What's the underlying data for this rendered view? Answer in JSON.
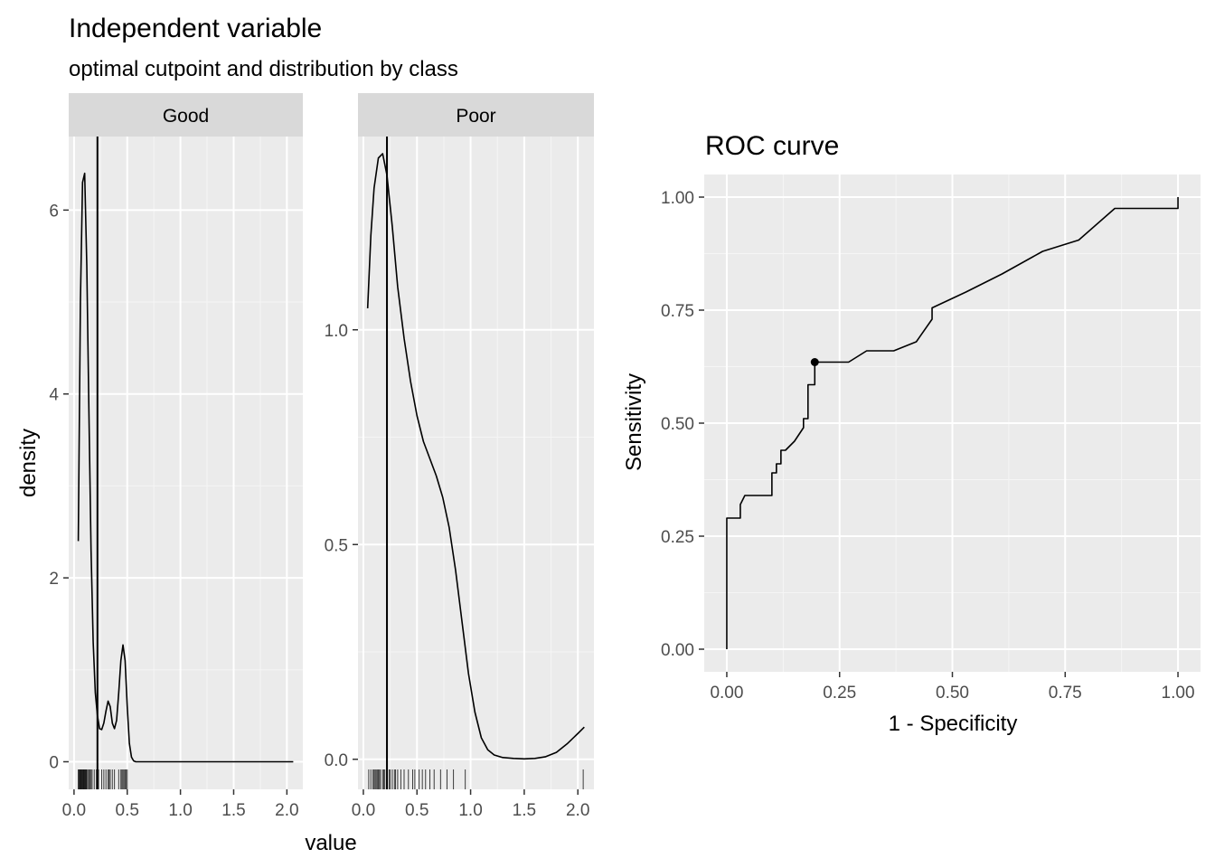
{
  "title": "Independent variable",
  "subtitle": "optimal cutpoint and distribution by class",
  "chart_data": [
    {
      "type": "line",
      "kind": "density",
      "facet": "Good",
      "xlabel": "value",
      "ylabel": "density",
      "xlim": [
        -0.05,
        2.15
      ],
      "ylim": [
        -0.3,
        6.8
      ],
      "xticks": [
        0.0,
        0.5,
        1.0,
        1.5,
        2.0
      ],
      "xtick_labels": [
        "0.0",
        "0.5",
        "1.0",
        "1.5",
        "2.0"
      ],
      "yticks": [
        0,
        2,
        4,
        6
      ],
      "ytick_labels": [
        "0",
        "2",
        "4",
        "6"
      ],
      "cutpoint": 0.22,
      "x": [
        0.04,
        0.06,
        0.08,
        0.1,
        0.12,
        0.14,
        0.16,
        0.18,
        0.2,
        0.22,
        0.24,
        0.26,
        0.28,
        0.3,
        0.32,
        0.34,
        0.36,
        0.38,
        0.4,
        0.42,
        0.44,
        0.46,
        0.48,
        0.5,
        0.52,
        0.54,
        0.56,
        0.58,
        0.6,
        0.7,
        1.0,
        1.5,
        2.06
      ],
      "y": [
        2.4,
        5.0,
        6.3,
        6.4,
        5.4,
        3.8,
        2.3,
        1.3,
        0.75,
        0.5,
        0.36,
        0.35,
        0.42,
        0.55,
        0.66,
        0.6,
        0.42,
        0.36,
        0.45,
        0.75,
        1.1,
        1.27,
        1.1,
        0.6,
        0.2,
        0.05,
        0.01,
        0.0,
        0.0,
        0.0,
        0.0,
        0.0,
        0.0
      ],
      "rug": [
        0.04,
        0.045,
        0.05,
        0.055,
        0.06,
        0.065,
        0.07,
        0.075,
        0.08,
        0.085,
        0.09,
        0.095,
        0.1,
        0.105,
        0.11,
        0.115,
        0.12,
        0.13,
        0.14,
        0.15,
        0.16,
        0.17,
        0.19,
        0.21,
        0.23,
        0.26,
        0.28,
        0.3,
        0.32,
        0.33,
        0.34,
        0.36,
        0.38,
        0.42,
        0.44,
        0.45,
        0.46,
        0.47,
        0.48,
        0.49,
        0.5
      ]
    },
    {
      "type": "line",
      "kind": "density",
      "facet": "Poor",
      "xlabel": "value",
      "xlim": [
        -0.05,
        2.15
      ],
      "ylim": [
        -0.07,
        1.45
      ],
      "xticks": [
        0.0,
        0.5,
        1.0,
        1.5,
        2.0
      ],
      "xtick_labels": [
        "0.0",
        "0.5",
        "1.0",
        "1.5",
        "2.0"
      ],
      "yticks": [
        0.0,
        0.5,
        1.0
      ],
      "ytick_labels": [
        "0.0",
        "0.5",
        "1.0"
      ],
      "cutpoint": 0.22,
      "x": [
        0.04,
        0.07,
        0.1,
        0.14,
        0.18,
        0.22,
        0.27,
        0.32,
        0.38,
        0.44,
        0.5,
        0.56,
        0.62,
        0.68,
        0.74,
        0.8,
        0.86,
        0.92,
        0.98,
        1.04,
        1.1,
        1.16,
        1.22,
        1.3,
        1.4,
        1.5,
        1.6,
        1.7,
        1.8,
        1.9,
        2.0,
        2.06
      ],
      "y": [
        1.05,
        1.22,
        1.33,
        1.4,
        1.41,
        1.36,
        1.24,
        1.1,
        0.98,
        0.88,
        0.8,
        0.74,
        0.7,
        0.66,
        0.61,
        0.54,
        0.44,
        0.32,
        0.2,
        0.11,
        0.05,
        0.022,
        0.01,
        0.004,
        0.002,
        0.001,
        0.002,
        0.006,
        0.016,
        0.036,
        0.06,
        0.075
      ],
      "rug": [
        0.05,
        0.07,
        0.09,
        0.1,
        0.11,
        0.12,
        0.13,
        0.14,
        0.15,
        0.16,
        0.18,
        0.19,
        0.2,
        0.22,
        0.24,
        0.25,
        0.27,
        0.29,
        0.3,
        0.32,
        0.35,
        0.38,
        0.42,
        0.46,
        0.48,
        0.52,
        0.55,
        0.58,
        0.62,
        0.66,
        0.72,
        0.78,
        0.84,
        0.95,
        2.05
      ]
    },
    {
      "type": "line",
      "kind": "roc",
      "title": "ROC curve",
      "xlabel": "1 - Specificity",
      "ylabel": "Sensitivity",
      "xlim": [
        -0.05,
        1.05
      ],
      "ylim": [
        -0.05,
        1.05
      ],
      "xticks": [
        0.0,
        0.25,
        0.5,
        0.75,
        1.0
      ],
      "xtick_labels": [
        "0.00",
        "0.25",
        "0.50",
        "0.75",
        "1.00"
      ],
      "yticks": [
        0.0,
        0.25,
        0.5,
        0.75,
        1.0
      ],
      "ytick_labels": [
        "0.00",
        "0.25",
        "0.50",
        "0.75",
        "1.00"
      ],
      "x": [
        0.0,
        0.0,
        0.03,
        0.03,
        0.04,
        0.1,
        0.1,
        0.11,
        0.11,
        0.12,
        0.12,
        0.13,
        0.15,
        0.17,
        0.17,
        0.18,
        0.18,
        0.195,
        0.195,
        0.27,
        0.31,
        0.37,
        0.42,
        0.455,
        0.455,
        0.53,
        0.61,
        0.7,
        0.78,
        0.86,
        1.0,
        1.0
      ],
      "y": [
        0.0,
        0.29,
        0.29,
        0.32,
        0.34,
        0.34,
        0.39,
        0.39,
        0.41,
        0.41,
        0.44,
        0.44,
        0.46,
        0.49,
        0.51,
        0.51,
        0.585,
        0.585,
        0.635,
        0.635,
        0.66,
        0.66,
        0.68,
        0.73,
        0.755,
        0.79,
        0.83,
        0.88,
        0.905,
        0.975,
        0.975,
        1.0
      ],
      "optimal_point": [
        0.195,
        0.635
      ]
    }
  ]
}
